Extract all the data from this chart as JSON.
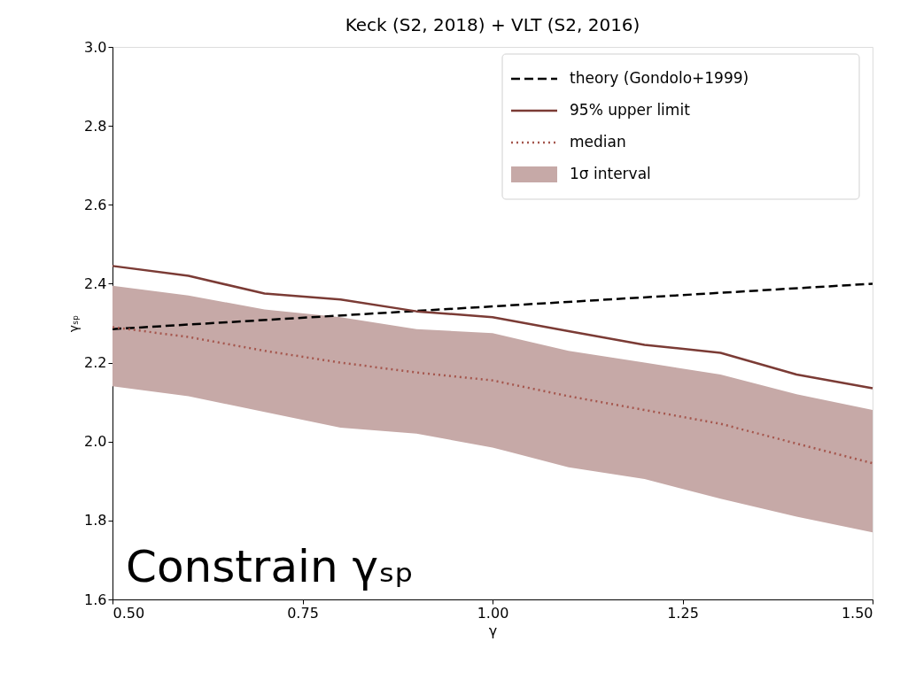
{
  "chart_data": {
    "type": "line",
    "title": "Keck (S2, 2018) + VLT (S2, 2016)",
    "xlabel": "γ",
    "ylabel": "γₛₚ",
    "x": [
      0.5,
      0.6,
      0.7,
      0.8,
      0.9,
      1.0,
      1.1,
      1.2,
      1.3,
      1.4,
      1.5
    ],
    "series": [
      {
        "name": "theory (Gondolo+1999)",
        "color": "#000000",
        "line_style": "dashed",
        "x": [
          0.5,
          1.5
        ],
        "values": [
          2.285,
          2.4
        ]
      },
      {
        "name": "95% upper limit",
        "color": "#7b3b35",
        "line_style": "solid",
        "values": [
          2.445,
          2.42,
          2.375,
          2.36,
          2.33,
          2.315,
          2.28,
          2.245,
          2.225,
          2.17,
          2.135
        ]
      },
      {
        "name": "median",
        "color": "#a5564d",
        "line_style": "dotted",
        "values": [
          2.29,
          2.265,
          2.23,
          2.2,
          2.175,
          2.155,
          2.115,
          2.08,
          2.045,
          1.995,
          1.945
        ]
      },
      {
        "name": "1σ interval",
        "type": "area",
        "color": "#c6a9a7",
        "values": [
          null,
          null,
          null,
          null,
          null,
          null,
          null,
          null,
          null,
          null,
          null
        ],
        "lower": [
          2.14,
          2.115,
          2.075,
          2.035,
          2.02,
          1.985,
          1.935,
          1.905,
          1.855,
          1.81,
          1.77
        ],
        "upper": [
          2.395,
          2.37,
          2.335,
          2.315,
          2.285,
          2.275,
          2.23,
          2.2,
          2.17,
          2.12,
          2.08
        ]
      }
    ],
    "xlim": [
      0.5,
      1.5
    ],
    "ylim": [
      1.6,
      3.0
    ],
    "xticks": [
      {
        "value": 0.5,
        "label": "0.50"
      },
      0.75,
      {
        "value": 1.0,
        "label": "1.00"
      },
      1.25,
      {
        "value": 1.5,
        "label": "1.50"
      }
    ],
    "yticks": [
      {
        "value": 1.6,
        "label": "1.6"
      },
      1.8,
      {
        "value": 2.0,
        "label": "2.0"
      },
      2.2,
      2.4,
      2.6,
      2.8,
      {
        "value": 3.0,
        "label": "3.0"
      }
    ],
    "annotations": [
      "Constrain γₛₚ"
    ],
    "legend": "top right",
    "grid": false
  }
}
